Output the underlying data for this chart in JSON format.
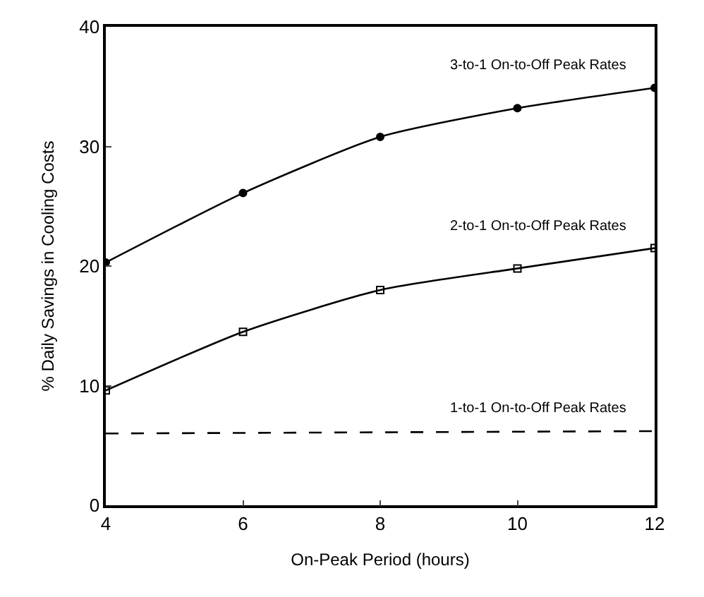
{
  "chart_data": {
    "type": "line",
    "xlabel": "On-Peak Period (hours)",
    "ylabel": "% Daily Savings in Cooling Costs",
    "x": [
      4,
      6,
      8,
      10,
      12
    ],
    "series": [
      {
        "name": "3-to-1 On-to-Off Peak Rates",
        "color": "#000000",
        "marker": "circle",
        "line_style": "solid",
        "values": [
          20.3,
          26.1,
          30.8,
          33.2,
          34.9
        ]
      },
      {
        "name": "2-to-1 On-to-Off Peak Rates",
        "color": "#000000",
        "marker": "square",
        "line_style": "solid",
        "values": [
          9.6,
          14.5,
          18.0,
          19.8,
          21.5
        ]
      },
      {
        "name": "1-to-1 On-to-Off Peak Rates",
        "color": "#000000",
        "marker": "none",
        "line_style": "dashed",
        "x": [
          4,
          12
        ],
        "values": [
          6.0,
          6.2
        ]
      }
    ],
    "xlim": [
      4,
      12
    ],
    "xticks": [
      4,
      6,
      8,
      10,
      12
    ],
    "ylim": [
      0,
      40
    ],
    "yticks": [
      0,
      10,
      20,
      30,
      40
    ]
  }
}
